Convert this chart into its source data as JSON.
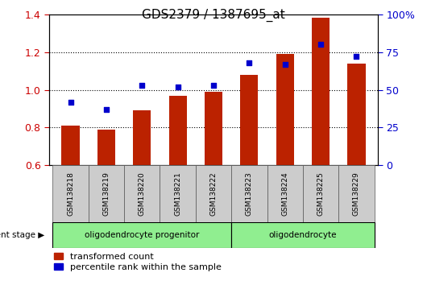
{
  "title": "GDS2379 / 1387695_at",
  "samples": [
    "GSM138218",
    "GSM138219",
    "GSM138220",
    "GSM138221",
    "GSM138222",
    "GSM138223",
    "GSM138224",
    "GSM138225",
    "GSM138229"
  ],
  "bar_values": [
    0.81,
    0.79,
    0.89,
    0.97,
    0.99,
    1.08,
    1.19,
    1.38,
    1.14
  ],
  "dot_values": [
    42,
    37,
    53,
    52,
    53,
    68,
    67,
    80,
    72
  ],
  "bar_color": "#bb2200",
  "dot_color": "#0000cc",
  "ylim_left": [
    0.6,
    1.4
  ],
  "ylim_right": [
    0,
    100
  ],
  "yticks_left": [
    0.6,
    0.8,
    1.0,
    1.2,
    1.4
  ],
  "yticks_right": [
    0,
    25,
    50,
    75,
    100
  ],
  "ytick_labels_right": [
    "0",
    "25",
    "50",
    "75",
    "100%"
  ],
  "grid_lines": [
    0.8,
    1.0,
    1.2
  ],
  "group_info": [
    {
      "start": 0,
      "end": 4,
      "label": "oligodendrocyte progenitor"
    },
    {
      "start": 5,
      "end": 8,
      "label": "oligodendrocyte"
    }
  ],
  "group_color": "#90ee90",
  "sample_box_color": "#cccccc",
  "legend_items": [
    "transformed count",
    "percentile rank within the sample"
  ],
  "legend_colors": [
    "#bb2200",
    "#0000cc"
  ],
  "tick_color_left": "#cc0000",
  "tick_color_right": "#0000cc",
  "bar_width": 0.5,
  "plot_bg": "#ffffff"
}
